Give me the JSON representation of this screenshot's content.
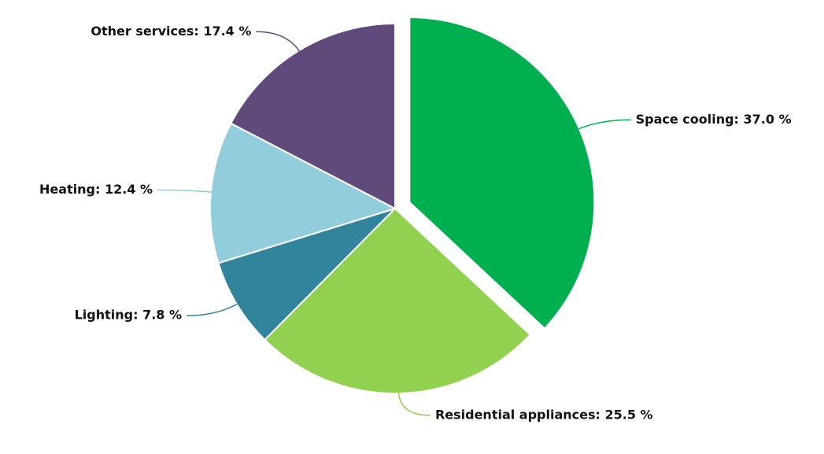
{
  "chart_data": {
    "type": "pie",
    "categories": [
      "Space cooling",
      "Residential appliances",
      "Lighting",
      "Heating",
      "Other services"
    ],
    "values": [
      37.0,
      25.5,
      7.8,
      12.4,
      17.4
    ],
    "value_labels": [
      "Space cooling: 37.0 %",
      "Residential appliances: 25.5 %",
      "Lighting: 7.8 %",
      "Heating: 12.4 %",
      "Other services: 17.4 %"
    ],
    "colors": [
      "#00b050",
      "#92d050",
      "#31849b",
      "#92cddc",
      "#604a7b"
    ],
    "exploded": [
      true,
      false,
      false,
      false,
      false
    ]
  }
}
